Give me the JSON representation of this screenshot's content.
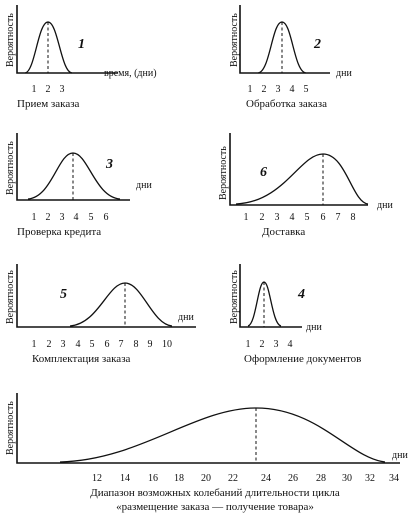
{
  "y_label": "Вероятность",
  "panels": [
    {
      "id": "p1",
      "number": "1",
      "x_label": "время, (дни)",
      "ticks": [
        "1",
        "2",
        "3"
      ],
      "caption": "Прием заказа",
      "mode": 2
    },
    {
      "id": "p2",
      "number": "2",
      "x_label": "дни",
      "ticks": [
        "1",
        "2",
        "3",
        "4",
        "5"
      ],
      "caption": "Обработка заказа",
      "mode": 3.5
    },
    {
      "id": "p3",
      "number": "3",
      "x_label": "дни",
      "ticks": [
        "1",
        "2",
        "3",
        "4",
        "5",
        "6"
      ],
      "caption": "Проверка кредита",
      "mode": 3.5
    },
    {
      "id": "p4",
      "number": "6",
      "x_label": "дни",
      "ticks": [
        "1",
        "2",
        "3",
        "4",
        "5",
        "6",
        "7",
        "8"
      ],
      "caption": "Доставка",
      "mode": 6
    },
    {
      "id": "p5",
      "number": "5",
      "x_label": "дни",
      "ticks": [
        "1",
        "2",
        "3",
        "4",
        "5",
        "6",
        "7",
        "8",
        "9",
        "10"
      ],
      "caption": "Комплектация заказа",
      "mode": 7.5
    },
    {
      "id": "p6",
      "number": "4",
      "x_label": "дни",
      "ticks": [
        "1",
        "2",
        "3",
        "4"
      ],
      "caption": "Оформление документов",
      "mode": 2
    },
    {
      "id": "p7",
      "number": "",
      "x_label": "дни",
      "ticks": [
        "12",
        "14",
        "16",
        "18",
        "20",
        "22",
        "24",
        "26",
        "28",
        "30",
        "32",
        "34"
      ],
      "caption": "Диапазон возможных колебаний длительности цикла",
      "caption2": "«размещение заказа — получение товара»",
      "mode": 23.5
    }
  ]
}
